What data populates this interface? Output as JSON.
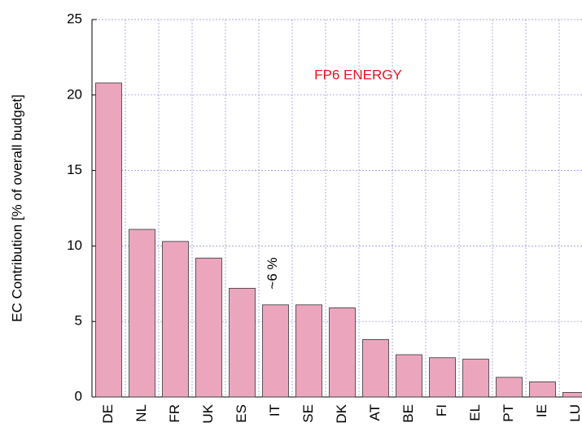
{
  "chart_data": {
    "type": "bar",
    "title": "FP6 ENERGY",
    "y_label": "EC Contribution  [% of overall budget]",
    "annotation": "~6 %",
    "categories": [
      "DE",
      "NL",
      "FR",
      "UK",
      "ES",
      "IT",
      "SE",
      "DK",
      "AT",
      "BE",
      "FI",
      "EL",
      "PT",
      "IE",
      "LU"
    ],
    "values": [
      20.8,
      11.1,
      10.3,
      9.2,
      7.2,
      6.1,
      6.1,
      5.9,
      3.8,
      2.8,
      2.6,
      2.5,
      1.3,
      1.0,
      0.3
    ],
    "color": "#eba6be",
    "ylim": [
      0,
      25
    ],
    "yticks": [
      0,
      5,
      10,
      15,
      20,
      25
    ],
    "grid": true
  }
}
